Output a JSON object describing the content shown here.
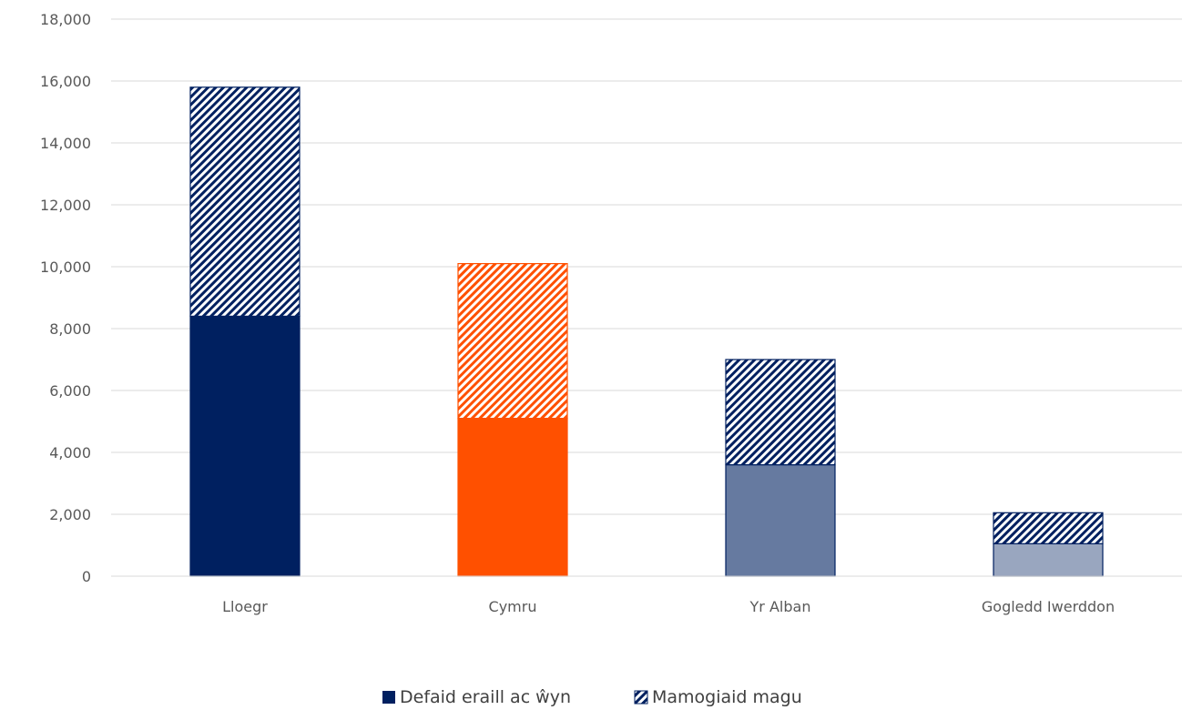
{
  "chart_data": {
    "type": "bar",
    "stacked": true,
    "categories": [
      "Lloegr",
      "Cymru",
      "Yr Alban",
      "Gogledd Iwerddon"
    ],
    "series": [
      {
        "name": "Defaid eraill ac ŵyn",
        "values": [
          8400,
          5100,
          3600,
          1050
        ],
        "pattern": "solid"
      },
      {
        "name": "Mamogiaid magu",
        "values": [
          7400,
          5000,
          3400,
          1000
        ],
        "pattern": "hatched"
      }
    ],
    "category_colors": [
      "#002060",
      "#FF5000",
      "#667AA0",
      "#99A6BF"
    ],
    "hatch_colors": [
      "#002060",
      "#FF5000",
      "#002060",
      "#002060"
    ],
    "ylim": [
      0,
      18000
    ],
    "yticks": [
      0,
      2000,
      4000,
      6000,
      8000,
      10000,
      12000,
      14000,
      16000,
      18000
    ],
    "ytick_labels": [
      "0",
      "2,000",
      "4,000",
      "6,000",
      "8,000",
      "10,000",
      "12,000",
      "14,000",
      "16,000",
      "18,000"
    ],
    "grid": true,
    "legend_position": "bottom",
    "legend_swatch_color": "#002060"
  }
}
